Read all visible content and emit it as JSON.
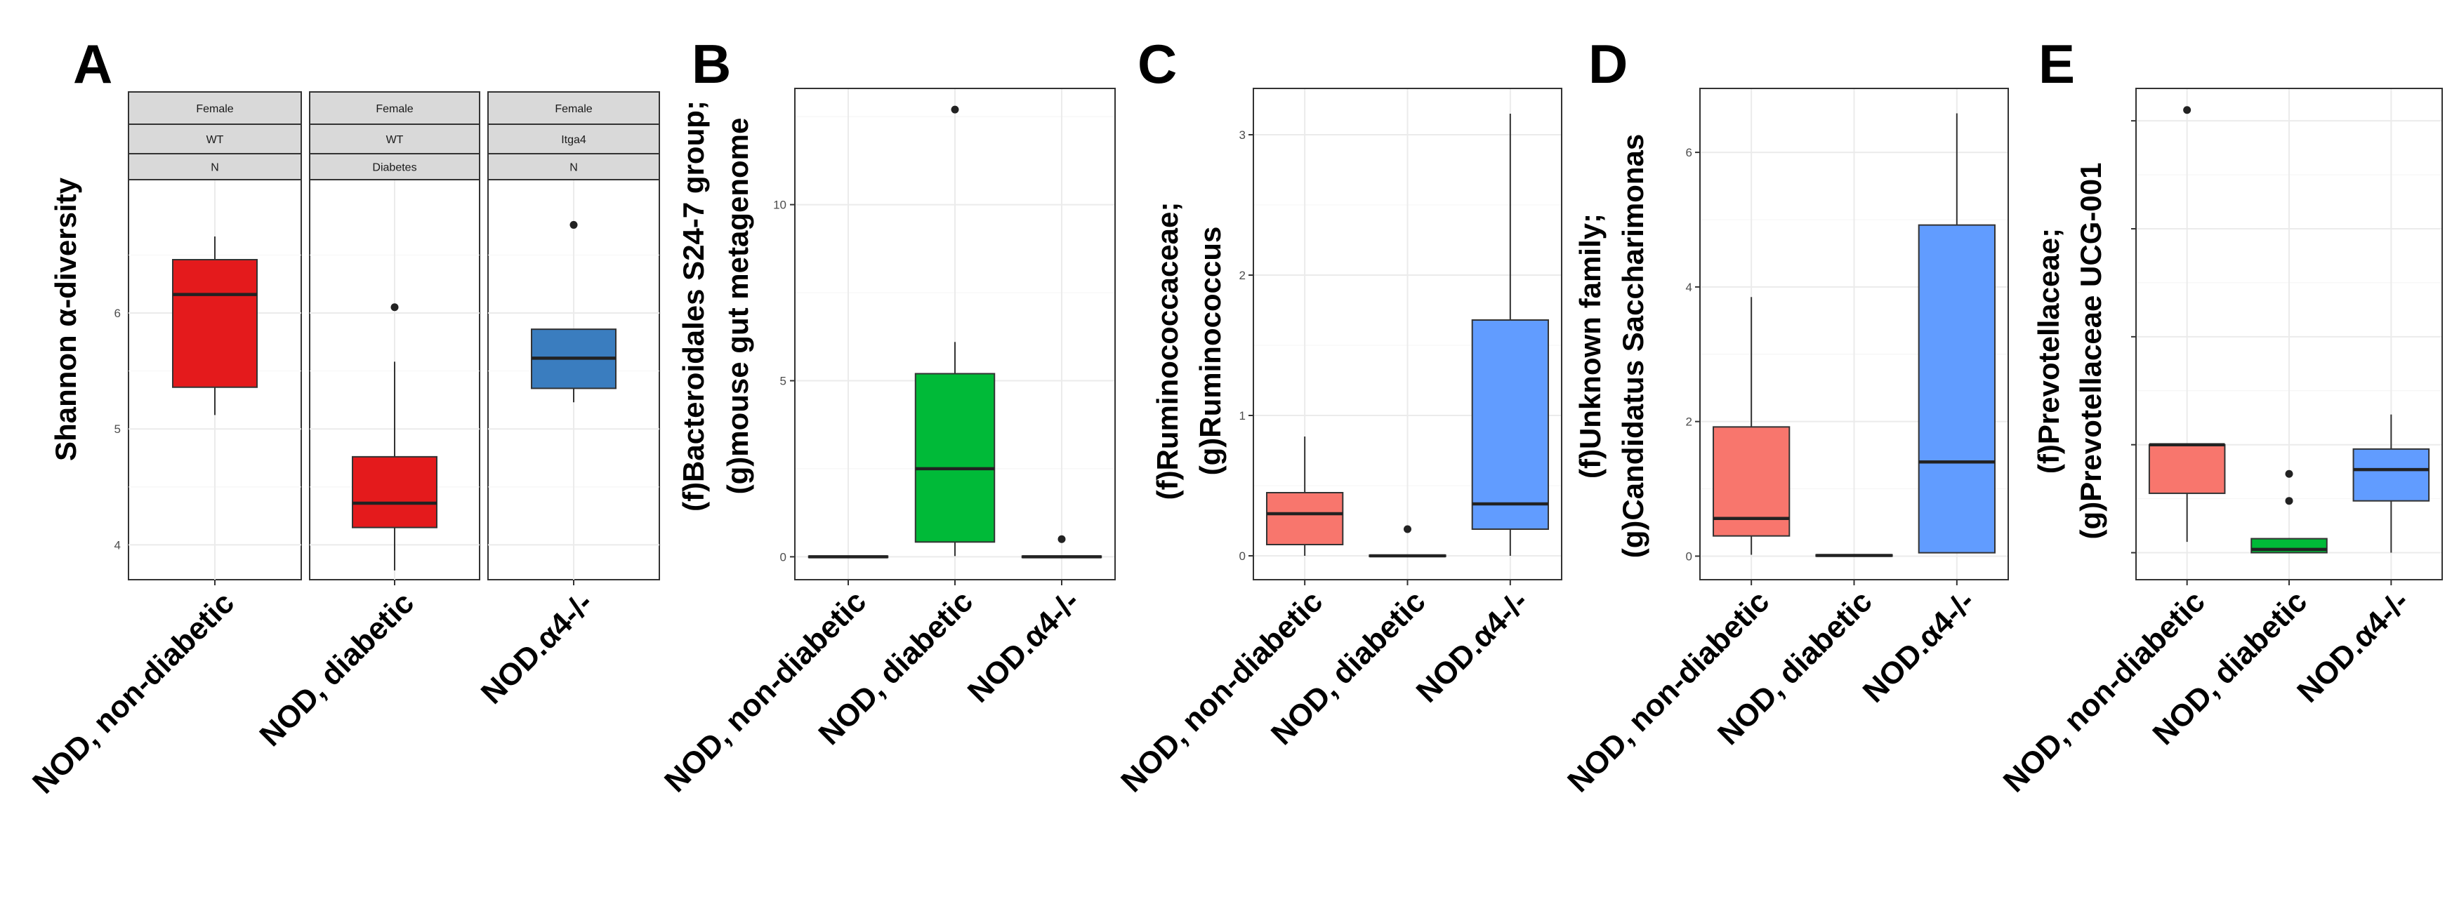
{
  "figure": {
    "panels_label": "Gut microbiota alpha-diversity and taxon abundance box plots"
  },
  "chart_data": [
    {
      "panel": "A",
      "type": "box",
      "title": "",
      "xlabel": "",
      "ylabel": "Shannon α-diversity",
      "ylim": [
        3.7,
        7.15
      ],
      "yticks": [
        4,
        5,
        6
      ],
      "grid": true,
      "facets": [
        {
          "strips": [
            "Female",
            "WT",
            "N"
          ],
          "category": "NOD, non-diabetic",
          "color": "#e41a1c",
          "box": {
            "whisker_low": 5.12,
            "q1": 5.36,
            "median": 6.16,
            "q3": 6.46,
            "whisker_high": 6.66,
            "outliers": []
          }
        },
        {
          "strips": [
            "Female",
            "WT",
            "Diabetes"
          ],
          "category": "NOD, diabetic",
          "color": "#e41a1c",
          "box": {
            "whisker_low": 3.78,
            "q1": 4.15,
            "median": 4.36,
            "q3": 4.76,
            "whisker_high": 5.58,
            "outliers": [
              6.05
            ]
          }
        },
        {
          "strips": [
            "Female",
            "Itga4",
            "N"
          ],
          "category": "NOD.α4-/-",
          "color": "#3a7dbf",
          "box": {
            "whisker_low": 5.23,
            "q1": 5.35,
            "median": 5.61,
            "q3": 5.86,
            "whisker_high": 5.86,
            "outliers": [
              6.76
            ]
          }
        }
      ]
    },
    {
      "panel": "B",
      "type": "box",
      "title": "",
      "xlabel": "",
      "ylabel_lines": [
        "(f)Bacteroidales S24-7 group;",
        "(g)mouse gut metagenome"
      ],
      "ylim": [
        -0.65,
        13.3
      ],
      "yticks": [
        0,
        5,
        10
      ],
      "grid": true,
      "categories": [
        "NOD, non-diabetic",
        "NOD, diabetic",
        "NOD.α4-/-"
      ],
      "colors": [
        "#f8766d",
        "#00ba38",
        "#619cff"
      ],
      "boxes": [
        {
          "whisker_low": 0,
          "q1": 0,
          "median": 0,
          "q3": 0.02,
          "whisker_high": 0.02,
          "outliers": []
        },
        {
          "whisker_low": 0.02,
          "q1": 0.42,
          "median": 2.5,
          "q3": 5.2,
          "whisker_high": 6.1,
          "outliers": [
            12.7
          ]
        },
        {
          "whisker_low": 0,
          "q1": 0,
          "median": 0,
          "q3": 0.02,
          "whisker_high": 0.02,
          "outliers": [
            0.5
          ]
        }
      ]
    },
    {
      "panel": "C",
      "type": "box",
      "title": "",
      "xlabel": "",
      "ylabel_lines": [
        "(f)Ruminococcaceae;",
        "(g)Ruminococcus"
      ],
      "ylim": [
        -0.17,
        3.33
      ],
      "yticks": [
        0,
        1,
        2,
        3
      ],
      "grid": true,
      "categories": [
        "NOD, non-diabetic",
        "NOD, diabetic",
        "NOD.α4-/-"
      ],
      "colors": [
        "#f8766d",
        "#00ba38",
        "#619cff"
      ],
      "boxes": [
        {
          "whisker_low": 0,
          "q1": 0.08,
          "median": 0.3,
          "q3": 0.45,
          "whisker_high": 0.85,
          "outliers": []
        },
        {
          "whisker_low": 0,
          "q1": 0,
          "median": 0,
          "q3": 0.005,
          "whisker_high": 0.005,
          "outliers": [
            0.19
          ]
        },
        {
          "whisker_low": 0,
          "q1": 0.19,
          "median": 0.37,
          "q3": 1.68,
          "whisker_high": 3.15,
          "outliers": []
        }
      ]
    },
    {
      "panel": "D",
      "type": "box",
      "title": "",
      "xlabel": "",
      "ylabel_lines": [
        "(f)Unknown family;",
        "(g)Candidatus  Saccharimonas"
      ],
      "ylim": [
        -0.35,
        6.95
      ],
      "yticks": [
        0,
        2,
        4,
        6
      ],
      "grid": true,
      "categories": [
        "NOD, non-diabetic",
        "NOD, diabetic",
        "NOD.α4-/-"
      ],
      "colors": [
        "#f8766d",
        "#00ba38",
        "#619cff"
      ],
      "boxes": [
        {
          "whisker_low": 0.02,
          "q1": 0.3,
          "median": 0.56,
          "q3": 1.92,
          "whisker_high": 3.85,
          "outliers": []
        },
        {
          "whisker_low": 0,
          "q1": 0,
          "median": 0.01,
          "q3": 0.02,
          "whisker_high": 0.03,
          "outliers": []
        },
        {
          "whisker_low": 0.05,
          "q1": 0.05,
          "median": 1.4,
          "q3": 4.92,
          "whisker_high": 6.58,
          "outliers": []
        }
      ]
    },
    {
      "panel": "E",
      "type": "box",
      "title": "",
      "xlabel": "",
      "ylabel_lines": [
        "(f)Prevotellaceae;",
        "(g)Prevotellaceae UCG-001"
      ],
      "ylim": [
        -0.25,
        4.3
      ],
      "yticks": [
        0,
        1,
        2,
        3,
        4
      ],
      "yticks_labeled": false,
      "grid": true,
      "categories": [
        "NOD, non-diabetic",
        "NOD, diabetic",
        "NOD.α4-/-"
      ],
      "colors": [
        "#f8766d",
        "#00ba38",
        "#619cff"
      ],
      "boxes": [
        {
          "whisker_low": 0.1,
          "q1": 0.55,
          "median": 1.0,
          "q3": 1.0,
          "whisker_high": 1.0,
          "outliers": [
            4.1
          ]
        },
        {
          "whisker_low": 0,
          "q1": 0,
          "median": 0.03,
          "q3": 0.13,
          "whisker_high": 0.13,
          "outliers": [
            0.48,
            0.73
          ]
        },
        {
          "whisker_low": 0,
          "q1": 0.48,
          "median": 0.77,
          "q3": 0.96,
          "whisker_high": 1.28,
          "outliers": []
        }
      ]
    }
  ]
}
